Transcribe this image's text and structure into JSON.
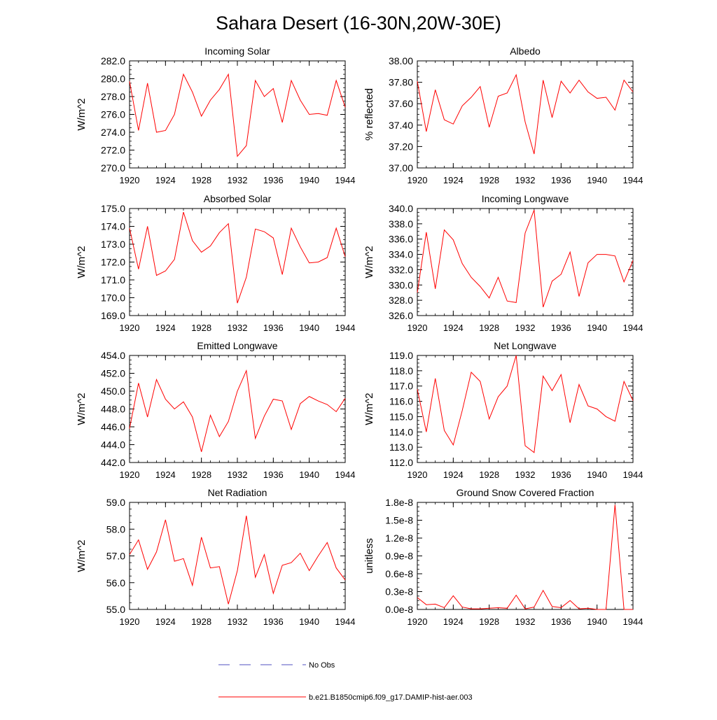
{
  "title": "Sahara Desert (16-30N,20W-30E)",
  "chart_data": [
    {
      "type": "line",
      "title": "Incoming Solar",
      "ylabel": "W/m^2",
      "xlim": [
        1920,
        1944
      ],
      "ylim": [
        270,
        282
      ],
      "xticks": [
        "1920",
        "1924",
        "1928",
        "1932",
        "1936",
        "1940",
        "1944"
      ],
      "yticks": [
        "270.0",
        "272.0",
        "274.0",
        "276.0",
        "278.0",
        "280.0",
        "282.0"
      ],
      "series": [
        {
          "name": "b.e21.B1850cmip6.f09_g17.DAMIP-hist-aer.003",
          "x": [
            1920,
            1921,
            1922,
            1923,
            1924,
            1925,
            1926,
            1927,
            1928,
            1929,
            1930,
            1931,
            1932,
            1933,
            1934,
            1935,
            1936,
            1937,
            1938,
            1939,
            1940,
            1941,
            1942,
            1943,
            1944
          ],
          "y": [
            279.7,
            274.2,
            279.5,
            274.0,
            274.2,
            276.0,
            280.5,
            278.5,
            275.8,
            277.6,
            278.8,
            280.5,
            271.3,
            272.5,
            279.8,
            278.0,
            278.9,
            275.1,
            279.8,
            277.6,
            276.0,
            276.1,
            275.9,
            279.8,
            276.8
          ]
        }
      ]
    },
    {
      "type": "line",
      "title": "Albedo",
      "ylabel": "% reflected",
      "xlim": [
        1920,
        1944
      ],
      "ylim": [
        37.0,
        38.0
      ],
      "xticks": [
        "1920",
        "1924",
        "1928",
        "1932",
        "1936",
        "1940",
        "1944"
      ],
      "yticks": [
        "37.00",
        "37.20",
        "37.40",
        "37.60",
        "37.80",
        "38.00"
      ],
      "series": [
        {
          "name": "b.e21.B1850cmip6.f09_g17.DAMIP-hist-aer.003",
          "x": [
            1920,
            1921,
            1922,
            1923,
            1924,
            1925,
            1926,
            1927,
            1928,
            1929,
            1930,
            1931,
            1932,
            1933,
            1934,
            1935,
            1936,
            1937,
            1938,
            1939,
            1940,
            1941,
            1942,
            1943,
            1944
          ],
          "y": [
            37.81,
            37.34,
            37.73,
            37.45,
            37.41,
            37.58,
            37.66,
            37.76,
            37.38,
            37.67,
            37.7,
            37.87,
            37.43,
            37.13,
            37.82,
            37.47,
            37.81,
            37.7,
            37.82,
            37.71,
            37.65,
            37.66,
            37.54,
            37.82,
            37.71
          ]
        }
      ]
    },
    {
      "type": "line",
      "title": "Absorbed Solar",
      "ylabel": "W/m^2",
      "xlim": [
        1920,
        1944
      ],
      "ylim": [
        169,
        175
      ],
      "xticks": [
        "1920",
        "1924",
        "1928",
        "1932",
        "1936",
        "1940",
        "1944"
      ],
      "yticks": [
        "169.0",
        "170.0",
        "171.0",
        "172.0",
        "173.0",
        "174.0",
        "175.0"
      ],
      "series": [
        {
          "name": "b.e21.B1850cmip6.f09_g17.DAMIP-hist-aer.003",
          "x": [
            1920,
            1921,
            1922,
            1923,
            1924,
            1925,
            1926,
            1927,
            1928,
            1929,
            1930,
            1931,
            1932,
            1933,
            1934,
            1935,
            1936,
            1937,
            1938,
            1939,
            1940,
            1941,
            1942,
            1943,
            1944
          ],
          "y": [
            173.9,
            171.6,
            174.0,
            171.25,
            171.5,
            172.15,
            174.8,
            173.2,
            172.55,
            172.9,
            173.65,
            174.15,
            169.7,
            171.15,
            173.85,
            173.7,
            173.35,
            171.3,
            173.9,
            172.85,
            171.95,
            172.0,
            172.25,
            173.9,
            172.3
          ]
        }
      ]
    },
    {
      "type": "line",
      "title": "Incoming Longwave",
      "ylabel": "W/m^2",
      "xlim": [
        1920,
        1944
      ],
      "ylim": [
        326,
        340
      ],
      "xticks": [
        "1920",
        "1924",
        "1928",
        "1932",
        "1936",
        "1940",
        "1944"
      ],
      "yticks": [
        "326.0",
        "328.0",
        "330.0",
        "332.0",
        "334.0",
        "336.0",
        "338.0",
        "340.0"
      ],
      "series": [
        {
          "name": "b.e21.B1850cmip6.f09_g17.DAMIP-hist-aer.003",
          "x": [
            1920,
            1921,
            1922,
            1923,
            1924,
            1925,
            1926,
            1927,
            1928,
            1929,
            1930,
            1931,
            1932,
            1933,
            1934,
            1935,
            1936,
            1937,
            1938,
            1939,
            1940,
            1941,
            1942,
            1943,
            1944
          ],
          "y": [
            329.0,
            336.9,
            329.5,
            337.2,
            335.9,
            332.8,
            331.0,
            329.8,
            328.3,
            331.0,
            327.9,
            327.7,
            336.8,
            339.8,
            327.1,
            330.5,
            331.4,
            334.3,
            328.5,
            332.9,
            334.0,
            334.0,
            333.8,
            330.4,
            333.2
          ]
        }
      ]
    },
    {
      "type": "line",
      "title": "Emitted Longwave",
      "ylabel": "W/m^2",
      "xlim": [
        1920,
        1944
      ],
      "ylim": [
        442,
        454
      ],
      "xticks": [
        "1920",
        "1924",
        "1928",
        "1932",
        "1936",
        "1940",
        "1944"
      ],
      "yticks": [
        "442.0",
        "444.0",
        "446.0",
        "448.0",
        "450.0",
        "452.0",
        "454.0"
      ],
      "series": [
        {
          "name": "b.e21.B1850cmip6.f09_g17.DAMIP-hist-aer.003",
          "x": [
            1920,
            1921,
            1922,
            1923,
            1924,
            1925,
            1926,
            1927,
            1928,
            1929,
            1930,
            1931,
            1932,
            1933,
            1934,
            1935,
            1936,
            1937,
            1938,
            1939,
            1940,
            1941,
            1942,
            1943,
            1944
          ],
          "y": [
            445.8,
            450.9,
            447.1,
            451.3,
            449.1,
            448.0,
            448.8,
            447.1,
            443.2,
            447.3,
            444.9,
            446.6,
            450.0,
            452.3,
            444.7,
            447.2,
            449.1,
            448.9,
            445.7,
            448.6,
            449.4,
            448.9,
            448.5,
            447.7,
            449.2
          ]
        }
      ]
    },
    {
      "type": "line",
      "title": "Net Longwave",
      "ylabel": "W/m^2",
      "xlim": [
        1920,
        1944
      ],
      "ylim": [
        112,
        119
      ],
      "xticks": [
        "1920",
        "1924",
        "1928",
        "1932",
        "1936",
        "1940",
        "1944"
      ],
      "yticks": [
        "112.0",
        "113.0",
        "114.0",
        "115.0",
        "116.0",
        "117.0",
        "118.0",
        "119.0"
      ],
      "series": [
        {
          "name": "b.e21.B1850cmip6.f09_g17.DAMIP-hist-aer.003",
          "x": [
            1920,
            1921,
            1922,
            1923,
            1924,
            1925,
            1926,
            1927,
            1928,
            1929,
            1930,
            1931,
            1932,
            1933,
            1934,
            1935,
            1936,
            1937,
            1938,
            1939,
            1940,
            1941,
            1942,
            1943,
            1944
          ],
          "y": [
            116.8,
            114.0,
            117.5,
            114.1,
            113.15,
            115.4,
            117.9,
            117.3,
            114.85,
            116.3,
            117.0,
            119.0,
            113.1,
            112.65,
            117.65,
            116.7,
            117.75,
            114.6,
            117.1,
            115.7,
            115.5,
            115.0,
            114.7,
            117.3,
            116.05
          ]
        }
      ]
    },
    {
      "type": "line",
      "title": "Net Radiation",
      "ylabel": "W/m^2",
      "xlim": [
        1920,
        1944
      ],
      "ylim": [
        55,
        59
      ],
      "xticks": [
        "1920",
        "1924",
        "1928",
        "1932",
        "1936",
        "1940",
        "1944"
      ],
      "yticks": [
        "55.0",
        "56.0",
        "57.0",
        "58.0",
        "59.0"
      ],
      "series": [
        {
          "name": "b.e21.B1850cmip6.f09_g17.DAMIP-hist-aer.003",
          "x": [
            1920,
            1921,
            1922,
            1923,
            1924,
            1925,
            1926,
            1927,
            1928,
            1929,
            1930,
            1931,
            1932,
            1933,
            1934,
            1935,
            1936,
            1937,
            1938,
            1939,
            1940,
            1941,
            1942,
            1943,
            1944
          ],
          "y": [
            57.05,
            57.6,
            56.5,
            57.15,
            58.35,
            56.8,
            56.9,
            55.9,
            57.7,
            56.55,
            56.6,
            55.2,
            56.45,
            58.5,
            56.2,
            57.05,
            55.6,
            56.65,
            56.75,
            57.1,
            56.45,
            57.0,
            57.5,
            56.55,
            56.1
          ]
        }
      ]
    },
    {
      "type": "line",
      "title": "Ground Snow Covered Fraction",
      "ylabel": "unitless",
      "xlim": [
        1920,
        1944
      ],
      "ylim": [
        0.0,
        1.8e-08
      ],
      "xticks": [
        "1920",
        "1924",
        "1928",
        "1932",
        "1936",
        "1940",
        "1944"
      ],
      "yticks": [
        "0.0e-8",
        "0.3e-8",
        "0.6e-8",
        "0.9e-8",
        "1.2e-8",
        "1.5e-8",
        "1.8e-8"
      ],
      "series": [
        {
          "name": "b.e21.B1850cmip6.f09_g17.DAMIP-hist-aer.003",
          "x": [
            1920,
            1921,
            1922,
            1923,
            1924,
            1925,
            1926,
            1927,
            1928,
            1929,
            1930,
            1931,
            1932,
            1933,
            1934,
            1935,
            1936,
            1937,
            1938,
            1939,
            1940,
            1941,
            1942,
            1943,
            1944
          ],
          "y": [
            2e-09,
            8e-10,
            9e-10,
            3e-10,
            2.3e-09,
            4e-10,
            1e-10,
            1e-10,
            2e-10,
            3e-10,
            2e-10,
            2.4e-09,
            1e-10,
            4e-10,
            3.2e-09,
            5e-10,
            3e-10,
            1.5e-09,
            1e-10,
            2e-10,
            0.0,
            0.0,
            1.76e-08,
            0.0,
            0.0
          ]
        }
      ]
    }
  ],
  "legend": [
    {
      "label": "No Obs",
      "color": "#5050c0",
      "dash": true
    },
    {
      "label": "b.e21.B1850cmip6.f09_g17.DAMIP-hist-aer.003",
      "color": "#ff0000",
      "dash": false
    }
  ]
}
